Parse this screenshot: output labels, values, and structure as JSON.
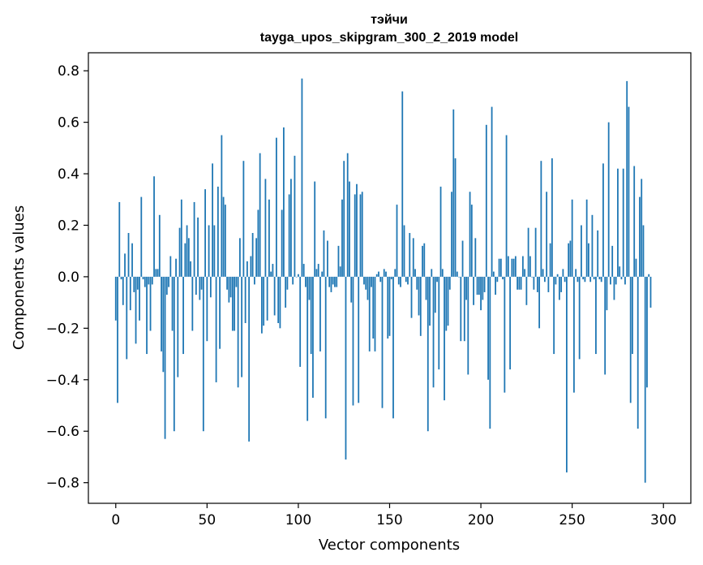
{
  "chart_data": {
    "type": "bar",
    "title": "тэйчи",
    "subtitle": "tayga_upos_skipgram_300_2_2019 model",
    "xlabel": "Vector components",
    "ylabel": "Components values",
    "xlim": [
      -15,
      315
    ],
    "ylim": [
      -0.88,
      0.87
    ],
    "x_ticks": [
      0,
      50,
      100,
      150,
      200,
      250,
      300
    ],
    "y_ticks": [
      -0.8,
      -0.6,
      -0.4,
      -0.2,
      0.0,
      0.2,
      0.4,
      0.6,
      0.8
    ],
    "y_tick_labels": [
      "−0.8",
      "−0.6",
      "−0.4",
      "−0.2",
      "0.0",
      "0.2",
      "0.4",
      "0.6",
      "0.8"
    ],
    "grid": false,
    "bar_color": "#1f77b4",
    "x": "indices 0..299",
    "values": [
      -0.17,
      -0.49,
      0.29,
      -0.01,
      -0.11,
      0.09,
      -0.32,
      0.17,
      -0.13,
      0.13,
      -0.06,
      -0.26,
      -0.05,
      -0.17,
      0.31,
      -0.01,
      -0.04,
      -0.3,
      -0.03,
      -0.21,
      -0.03,
      0.39,
      0.03,
      0.03,
      0.24,
      -0.29,
      -0.37,
      -0.63,
      -0.07,
      -0.04,
      0.08,
      -0.21,
      -0.6,
      0.07,
      -0.39,
      0.19,
      0.3,
      -0.3,
      0.13,
      0.2,
      0.15,
      0.06,
      -0.21,
      0.29,
      -0.07,
      0.23,
      -0.09,
      -0.05,
      -0.6,
      0.34,
      -0.25,
      0.2,
      -0.08,
      0.44,
      0.2,
      -0.41,
      0.35,
      -0.28,
      0.55,
      0.31,
      0.28,
      -0.05,
      -0.1,
      -0.08,
      -0.21,
      -0.21,
      -0.04,
      -0.43,
      0.15,
      -0.39,
      0.45,
      -0.18,
      0.06,
      -0.64,
      0.08,
      0.17,
      -0.03,
      0.15,
      0.26,
      0.48,
      -0.22,
      -0.19,
      0.38,
      -0.17,
      0.3,
      0.02,
      0.05,
      -0.15,
      0.54,
      -0.18,
      -0.2,
      0.26,
      0.58,
      -0.12,
      -0.05,
      0.32,
      0.38,
      -0.03,
      0.47,
      0.0,
      0.01,
      -0.35,
      0.77,
      0.05,
      -0.04,
      -0.56,
      -0.09,
      -0.3,
      -0.47,
      0.37,
      0.03,
      0.05,
      -0.29,
      0.02,
      0.18,
      -0.55,
      0.14,
      -0.04,
      -0.06,
      -0.03,
      -0.04,
      -0.04,
      0.12,
      0.04,
      0.3,
      0.45,
      -0.71,
      0.48,
      0.37,
      -0.1,
      -0.5,
      0.32,
      0.36,
      -0.49,
      0.32,
      0.33,
      -0.03,
      -0.05,
      -0.09,
      -0.29,
      -0.04,
      -0.24,
      -0.29,
      0.01,
      0.02,
      -0.02,
      -0.51,
      0.03,
      0.02,
      -0.24,
      -0.23,
      -0.01,
      -0.55,
      0.03,
      0.28,
      -0.03,
      -0.04,
      0.72,
      0.2,
      -0.02,
      -0.03,
      0.17,
      -0.16,
      0.15,
      0.03,
      -0.05,
      -0.15,
      -0.23,
      0.12,
      0.13,
      -0.09,
      -0.6,
      -0.19,
      0.03,
      -0.43,
      -0.14,
      -0.02,
      -0.36,
      0.35,
      0.03,
      -0.48,
      -0.21,
      -0.19,
      -0.05,
      0.33,
      0.65,
      0.46,
      0.02,
      0.0,
      -0.25,
      0.14,
      -0.25,
      -0.09,
      -0.38,
      0.33,
      0.28,
      -0.11,
      0.15,
      -0.07,
      -0.07,
      -0.13,
      -0.09,
      -0.06,
      0.59,
      -0.4,
      -0.59,
      0.66,
      0.02,
      -0.07,
      -0.02,
      0.07,
      0.07,
      -0.01,
      -0.45,
      0.55,
      0.08,
      -0.36,
      0.07,
      0.07,
      0.08,
      -0.05,
      -0.05,
      -0.05,
      0.08,
      0.03,
      -0.11,
      0.19,
      0.08,
      0.0,
      -0.05,
      0.19,
      -0.06,
      -0.2,
      0.45,
      0.03,
      -0.02,
      0.33,
      -0.06,
      0.13,
      0.46,
      -0.3,
      -0.03,
      0.01,
      -0.09,
      -0.06,
      0.03,
      -0.02,
      -0.76,
      0.13,
      0.14,
      0.3,
      -0.45,
      0.03,
      -0.02,
      -0.32,
      0.2,
      -0.01,
      -0.02,
      0.3,
      0.13,
      -0.02,
      0.24,
      -0.01,
      -0.3,
      0.18,
      -0.01,
      -0.02,
      0.44,
      -0.38,
      -0.13,
      0.6,
      -0.03,
      0.12,
      -0.09,
      -0.03,
      0.42,
      0.04,
      -0.01,
      0.42,
      -0.03,
      0.76,
      0.66,
      -0.49,
      -0.3,
      0.43,
      0.07,
      -0.59,
      0.31,
      0.38,
      0.2,
      -0.8,
      -0.43,
      0.01,
      -0.12
    ]
  }
}
